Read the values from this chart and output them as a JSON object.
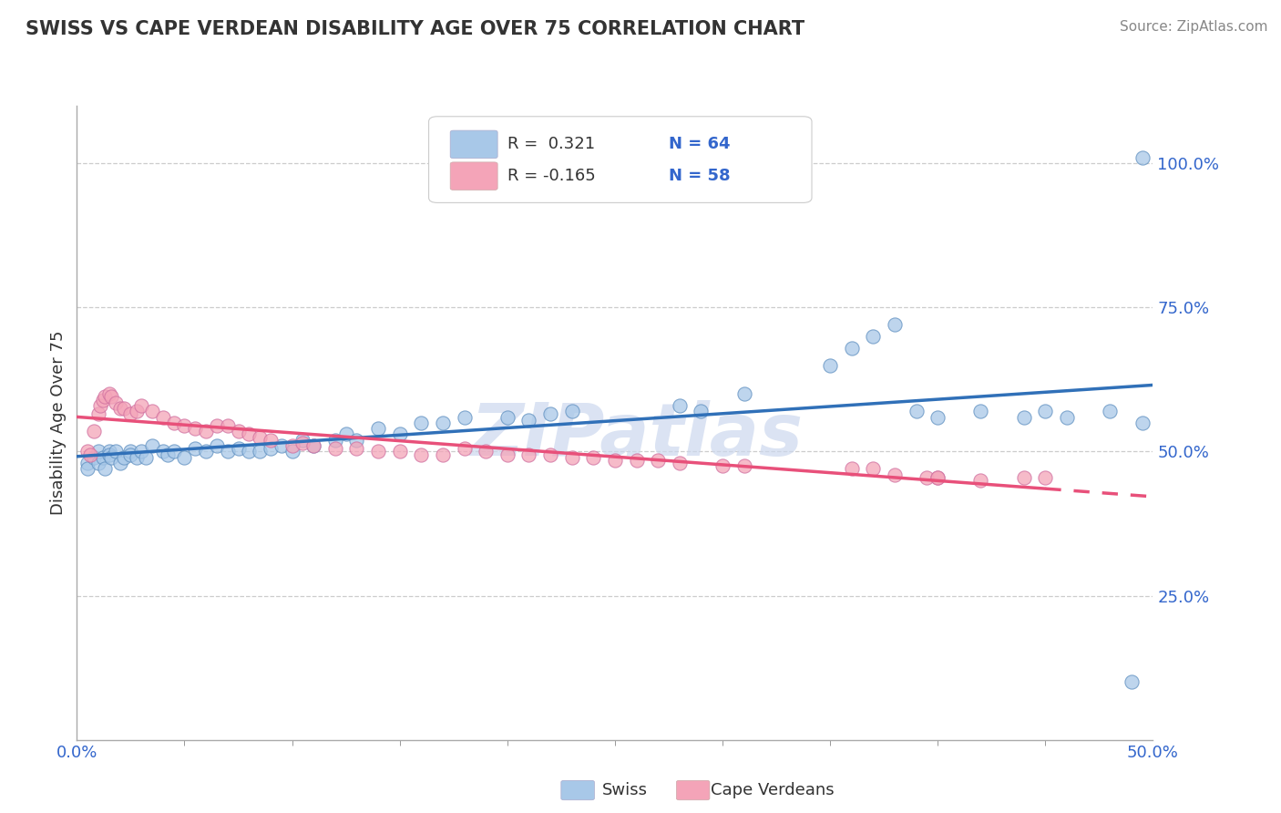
{
  "title": "SWISS VS CAPE VERDEAN DISABILITY AGE OVER 75 CORRELATION CHART",
  "source": "Source: ZipAtlas.com",
  "ylabel": "Disability Age Over 75",
  "xlim": [
    0.0,
    0.5
  ],
  "ylim": [
    0.0,
    1.1
  ],
  "ytick_vals": [
    0.25,
    0.5,
    0.75,
    1.0
  ],
  "ytick_labels": [
    "25.0%",
    "50.0%",
    "75.0%",
    "100.0%"
  ],
  "xtick_vals": [
    0.0,
    0.5
  ],
  "xtick_labels": [
    "0.0%",
    "50.0%"
  ],
  "swiss_color": "#a8c8e8",
  "cape_verdean_color": "#f4a4b8",
  "trend_swiss_color": "#3070b8",
  "trend_cape_color": "#e8507a",
  "watermark": "ZIPatlas",
  "swiss_points_x": [
    0.005,
    0.005,
    0.008,
    0.01,
    0.01,
    0.012,
    0.013,
    0.015,
    0.015,
    0.016,
    0.018,
    0.02,
    0.022,
    0.025,
    0.025,
    0.028,
    0.03,
    0.032,
    0.035,
    0.04,
    0.042,
    0.045,
    0.05,
    0.055,
    0.06,
    0.065,
    0.07,
    0.075,
    0.08,
    0.085,
    0.09,
    0.095,
    0.1,
    0.105,
    0.11,
    0.12,
    0.125,
    0.13,
    0.14,
    0.15,
    0.16,
    0.17,
    0.18,
    0.2,
    0.21,
    0.22,
    0.23,
    0.28,
    0.29,
    0.31,
    0.35,
    0.36,
    0.37,
    0.38,
    0.39,
    0.4,
    0.42,
    0.44,
    0.45,
    0.46,
    0.48,
    0.49,
    0.495,
    0.495
  ],
  "swiss_points_y": [
    0.48,
    0.47,
    0.49,
    0.48,
    0.5,
    0.49,
    0.47,
    0.5,
    0.495,
    0.49,
    0.5,
    0.48,
    0.49,
    0.5,
    0.495,
    0.49,
    0.5,
    0.49,
    0.51,
    0.5,
    0.495,
    0.5,
    0.49,
    0.505,
    0.5,
    0.51,
    0.5,
    0.505,
    0.5,
    0.5,
    0.505,
    0.51,
    0.5,
    0.52,
    0.51,
    0.52,
    0.53,
    0.52,
    0.54,
    0.53,
    0.55,
    0.55,
    0.56,
    0.56,
    0.555,
    0.565,
    0.57,
    0.58,
    0.57,
    0.6,
    0.65,
    0.68,
    0.7,
    0.72,
    0.57,
    0.56,
    0.57,
    0.56,
    0.57,
    0.56,
    0.57,
    0.1,
    1.01,
    0.55
  ],
  "cape_points_x": [
    0.005,
    0.006,
    0.008,
    0.01,
    0.011,
    0.012,
    0.013,
    0.015,
    0.016,
    0.018,
    0.02,
    0.022,
    0.025,
    0.028,
    0.03,
    0.035,
    0.04,
    0.045,
    0.05,
    0.055,
    0.06,
    0.065,
    0.07,
    0.075,
    0.08,
    0.085,
    0.09,
    0.1,
    0.105,
    0.11,
    0.12,
    0.13,
    0.14,
    0.15,
    0.16,
    0.17,
    0.18,
    0.19,
    0.2,
    0.21,
    0.22,
    0.23,
    0.24,
    0.25,
    0.26,
    0.27,
    0.28,
    0.3,
    0.31,
    0.36,
    0.37,
    0.38,
    0.395,
    0.4,
    0.4,
    0.42,
    0.44,
    0.45
  ],
  "cape_points_y": [
    0.5,
    0.495,
    0.535,
    0.565,
    0.58,
    0.59,
    0.595,
    0.6,
    0.595,
    0.585,
    0.575,
    0.575,
    0.565,
    0.57,
    0.58,
    0.57,
    0.56,
    0.55,
    0.545,
    0.54,
    0.535,
    0.545,
    0.545,
    0.535,
    0.53,
    0.525,
    0.52,
    0.51,
    0.515,
    0.51,
    0.505,
    0.505,
    0.5,
    0.5,
    0.495,
    0.495,
    0.505,
    0.5,
    0.495,
    0.495,
    0.495,
    0.49,
    0.49,
    0.485,
    0.485,
    0.485,
    0.48,
    0.475,
    0.475,
    0.47,
    0.47,
    0.46,
    0.455,
    0.455,
    0.455,
    0.45,
    0.455,
    0.455
  ]
}
